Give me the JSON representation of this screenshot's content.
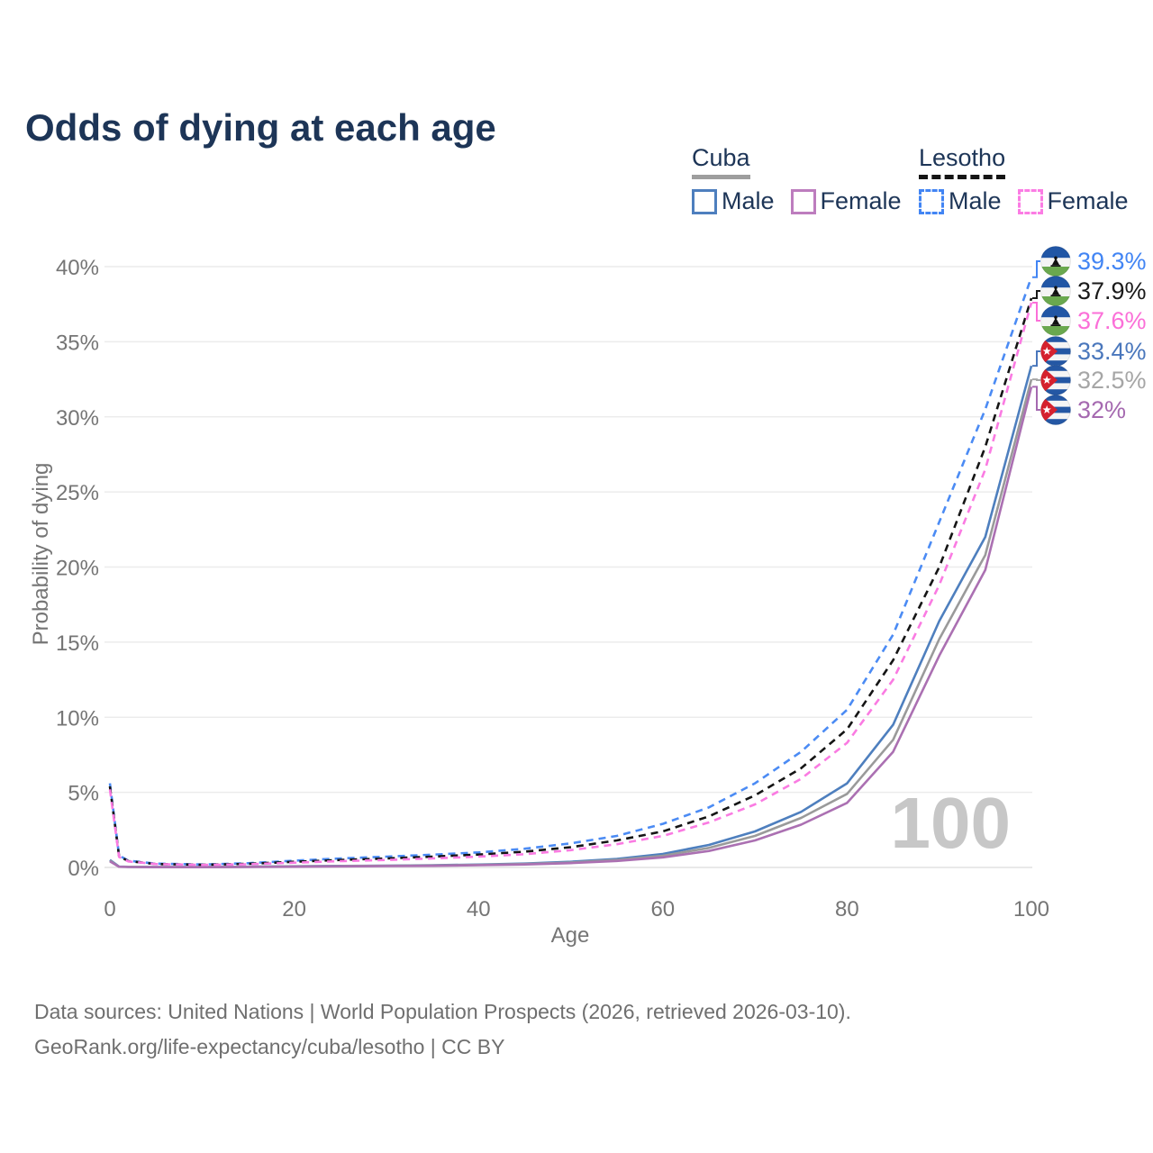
{
  "title": "Odds of dying at each age",
  "watermark": "100",
  "legend": {
    "groups": [
      {
        "name": "Cuba",
        "underline_color": "#9e9e9e",
        "underline_style": "solid",
        "items": [
          {
            "label": "Male",
            "color": "#4e7fbe",
            "dashed": false
          },
          {
            "label": "Female",
            "color": "#bd7dbe",
            "dashed": false
          }
        ]
      },
      {
        "name": "Lesotho",
        "underline_color": "#151515",
        "underline_style": "dashed",
        "items": [
          {
            "label": "Male",
            "color": "#4285f4",
            "dashed": true
          },
          {
            "label": "Female",
            "color": "#fb7ce4",
            "dashed": true
          }
        ]
      }
    ]
  },
  "chart_data": {
    "type": "line",
    "title": "Odds of dying at each age",
    "xlabel": "Age",
    "ylabel": "Probability of dying",
    "xlim": [
      0,
      100
    ],
    "ylim": [
      0,
      40
    ],
    "x_ticks": [
      0,
      20,
      40,
      60,
      80,
      100
    ],
    "y_ticks": [
      0,
      5,
      10,
      15,
      20,
      25,
      30,
      35,
      40
    ],
    "y_tick_suffix": "%",
    "grid": true,
    "legend_position": "top-right",
    "x": [
      0,
      1,
      2,
      5,
      10,
      15,
      20,
      25,
      30,
      35,
      40,
      45,
      50,
      55,
      60,
      65,
      70,
      75,
      80,
      85,
      90,
      95,
      100
    ],
    "series": [
      {
        "id": "cuba-male",
        "name": "Cuba Male",
        "country": "Cuba",
        "sex": "Male",
        "color": "#4e7fbe",
        "label_color": "#4a77bc",
        "dashed": false,
        "flag": "cuba",
        "end_label": "33.4%",
        "values": [
          0.5,
          0.06,
          0.04,
          0.03,
          0.03,
          0.05,
          0.08,
          0.1,
          0.12,
          0.15,
          0.19,
          0.26,
          0.38,
          0.57,
          0.9,
          1.5,
          2.4,
          3.7,
          5.6,
          9.5,
          16.4,
          22.0,
          33.4
        ]
      },
      {
        "id": "cuba-both",
        "name": "Cuba (both sexes)",
        "country": "Cuba",
        "sex": "Both",
        "color": "#9a9a9a",
        "label_color": "#a6a6a6",
        "dashed": false,
        "flag": "cuba",
        "end_label": "32.5%",
        "values": [
          0.45,
          0.05,
          0.04,
          0.025,
          0.025,
          0.04,
          0.07,
          0.09,
          0.11,
          0.13,
          0.17,
          0.23,
          0.33,
          0.5,
          0.78,
          1.3,
          2.1,
          3.3,
          4.9,
          8.5,
          15.2,
          20.8,
          32.5
        ]
      },
      {
        "id": "cuba-female",
        "name": "Cuba Female",
        "country": "Cuba",
        "sex": "Female",
        "color": "#ab70b2",
        "label_color": "#a569b0",
        "dashed": false,
        "flag": "cuba",
        "end_label": "32%",
        "values": [
          0.4,
          0.05,
          0.03,
          0.02,
          0.02,
          0.03,
          0.05,
          0.07,
          0.09,
          0.11,
          0.15,
          0.2,
          0.29,
          0.43,
          0.67,
          1.1,
          1.8,
          2.85,
          4.3,
          7.7,
          14.1,
          19.8,
          32.0
        ]
      },
      {
        "id": "lesotho-male",
        "name": "Lesotho Male",
        "country": "Lesotho",
        "sex": "Male",
        "color": "#4b8bf4",
        "label_color": "#4285f4",
        "dashed": true,
        "flag": "lesotho",
        "end_label": "39.3%",
        "values": [
          5.6,
          0.8,
          0.45,
          0.25,
          0.2,
          0.28,
          0.45,
          0.6,
          0.72,
          0.85,
          1.0,
          1.25,
          1.6,
          2.1,
          2.9,
          4.0,
          5.6,
          7.7,
          10.5,
          15.5,
          23.0,
          30.5,
          39.3
        ]
      },
      {
        "id": "lesotho-both",
        "name": "Lesotho (both sexes)",
        "country": "Lesotho",
        "sex": "Both",
        "color": "#151515",
        "label_color": "#1a1a1a",
        "dashed": true,
        "flag": "lesotho",
        "end_label": "37.9%",
        "values": [
          5.4,
          0.75,
          0.42,
          0.23,
          0.18,
          0.24,
          0.38,
          0.5,
          0.6,
          0.72,
          0.86,
          1.05,
          1.35,
          1.8,
          2.4,
          3.4,
          4.8,
          6.6,
          9.2,
          13.8,
          20.0,
          28.0,
          37.9
        ]
      },
      {
        "id": "lesotho-female",
        "name": "Lesotho Female",
        "country": "Lesotho",
        "sex": "Female",
        "color": "#fa7be2",
        "label_color": "#fb6fd8",
        "dashed": true,
        "flag": "lesotho",
        "end_label": "37.6%",
        "values": [
          5.2,
          0.7,
          0.4,
          0.22,
          0.17,
          0.21,
          0.32,
          0.42,
          0.5,
          0.6,
          0.72,
          0.88,
          1.15,
          1.55,
          2.1,
          3.0,
          4.2,
          5.9,
          8.3,
          12.5,
          18.8,
          26.5,
          37.6
        ]
      }
    ]
  },
  "footer": {
    "line1": "Data sources: United Nations | World Population Prospects (2026, retrieved 2026-03-10).",
    "line2": "GeoRank.org/life-expectancy/cuba/lesotho | CC BY"
  }
}
